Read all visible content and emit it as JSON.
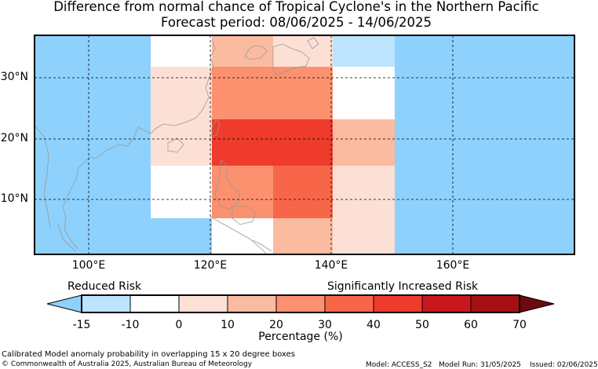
{
  "title": "Difference from normal chance of Tropical Cyclone's in the Northern Pacific",
  "subtitle": "Forecast period: 08/06/2025 - 14/06/2025",
  "map": {
    "lat_labels": [
      "30°N",
      "20°N",
      "10°N"
    ],
    "lon_labels": [
      "100°E",
      "120°E",
      "140°E",
      "160°E"
    ],
    "ocean_color": "#8ed1fc",
    "land_outline_color": "#999999"
  },
  "colorbar": {
    "left_label": "Reduced Risk",
    "right_label": "Significantly Increased Risk",
    "ticks": [
      "-15",
      "-10",
      "0",
      "10",
      "20",
      "30",
      "40",
      "50",
      "60",
      "70"
    ],
    "bins": [
      {
        "range": "<-15",
        "color": "#8ed1fc"
      },
      {
        "range": "-15 to -10",
        "color": "#bde4fd"
      },
      {
        "range": "-10 to 0",
        "color": "#ffffff"
      },
      {
        "range": "0 to 10",
        "color": "#fde0d5"
      },
      {
        "range": "10 to 20",
        "color": "#fbbba0"
      },
      {
        "range": "20 to 30",
        "color": "#fb916f"
      },
      {
        "range": "30 to 40",
        "color": "#f86649"
      },
      {
        "range": "40 to 50",
        "color": "#ee3b2b"
      },
      {
        "range": "50 to 60",
        "color": "#c9171e"
      },
      {
        "range": "60 to 70",
        "color": "#a50f15"
      },
      {
        "range": ">70",
        "color": "#6e0a0f"
      }
    ],
    "xlabel": "Percentage (%)"
  },
  "footer": {
    "note": "Calibrated Model anomaly probability in overlapping 15 x 20 degree boxes",
    "copyright": "© Commonwealth of Australia 2025, Australian Bureau of Meteorology",
    "model": "Model: ACCESS_S2",
    "model_run": "Model Run: 31/05/2025",
    "issued": "Issued: 02/06/2025"
  }
}
